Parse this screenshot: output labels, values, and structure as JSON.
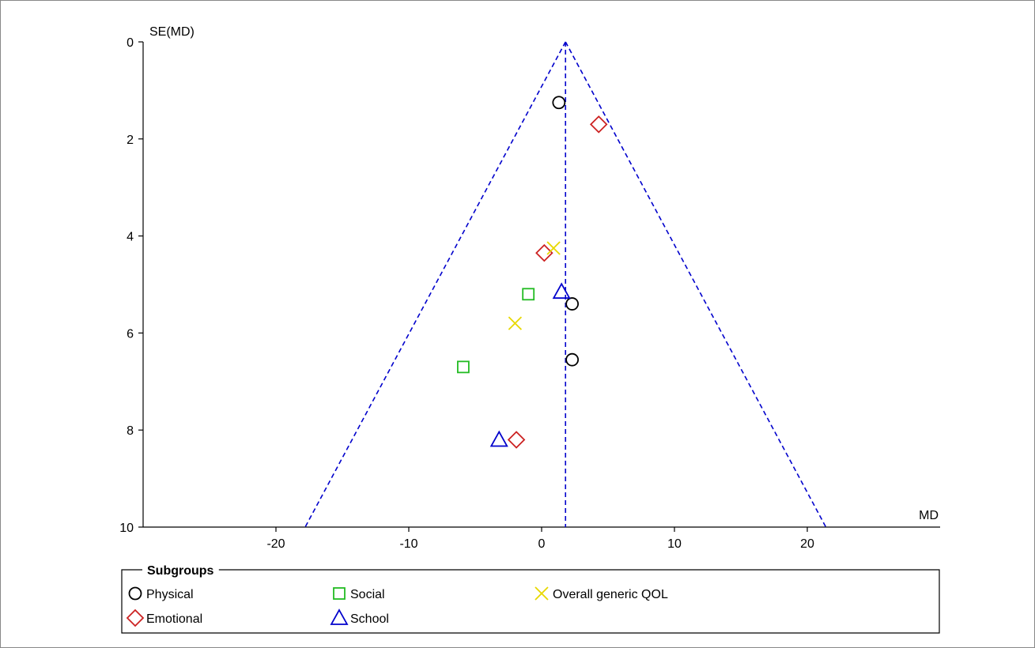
{
  "chart_data": {
    "type": "scatter",
    "title": "",
    "xlabel": "MD",
    "ylabel": "SE(MD)",
    "xlim": [
      -30,
      30
    ],
    "ylim": [
      0,
      10
    ],
    "y_inverted": true,
    "x_ticks": [
      -20,
      -10,
      0,
      10,
      20
    ],
    "y_ticks": [
      0,
      2,
      4,
      6,
      8,
      10
    ],
    "grid": false,
    "pooled_estimate": 1.8,
    "funnel_lines": {
      "apex": [
        1.8,
        0
      ],
      "left_base": [
        -17.8,
        10
      ],
      "right_base": [
        21.4,
        10
      ]
    },
    "legend": {
      "title": "Subgroups",
      "placement": "bottom"
    },
    "series": [
      {
        "name": "Physical",
        "marker": "circle",
        "color": "#000000",
        "points": [
          [
            1.3,
            1.25
          ],
          [
            2.3,
            5.4
          ],
          [
            2.3,
            6.55
          ]
        ]
      },
      {
        "name": "Emotional",
        "marker": "diamond",
        "color": "#cc2222",
        "points": [
          [
            4.3,
            1.7
          ],
          [
            0.2,
            4.35
          ],
          [
            -1.9,
            8.2
          ]
        ]
      },
      {
        "name": "Social",
        "marker": "square",
        "color": "#22bb22",
        "points": [
          [
            -1.0,
            5.2
          ],
          [
            -5.9,
            6.7
          ]
        ]
      },
      {
        "name": "School",
        "marker": "triangle",
        "color": "#0000cc",
        "points": [
          [
            1.5,
            5.15
          ],
          [
            -3.2,
            8.2
          ]
        ]
      },
      {
        "name": "Overall generic QOL",
        "marker": "cross",
        "color": "#e8d800",
        "points": [
          [
            0.9,
            4.25
          ],
          [
            -2.0,
            5.8
          ]
        ]
      }
    ]
  }
}
